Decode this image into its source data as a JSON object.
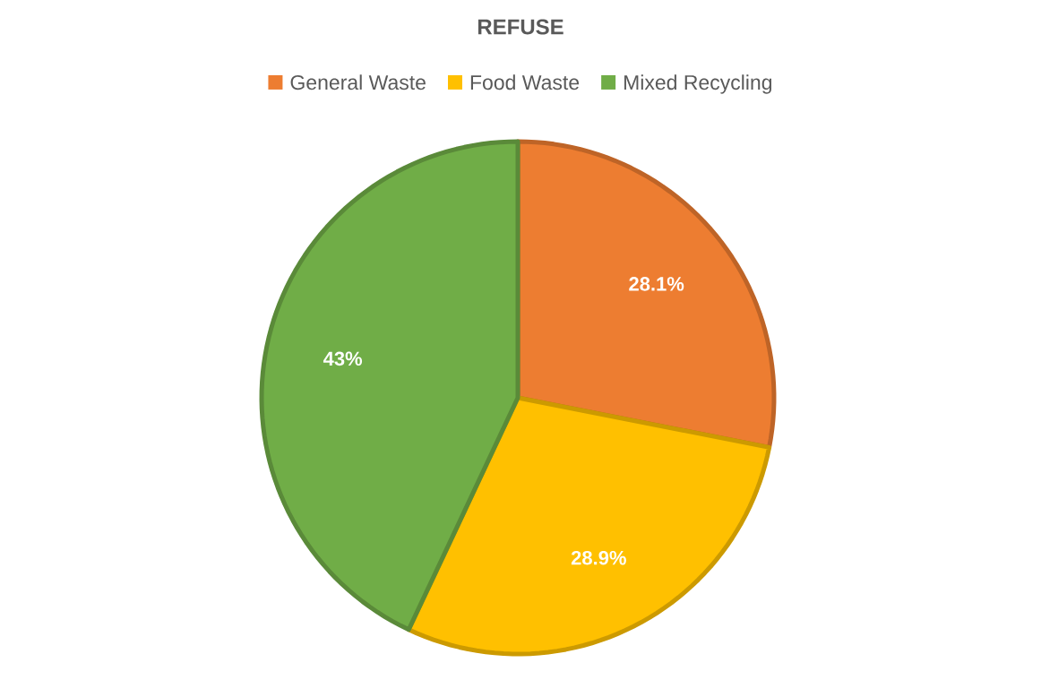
{
  "chart_data": {
    "type": "pie",
    "title": "REFUSE",
    "categories": [
      "General Waste",
      "Food Waste",
      "Mixed Recycling"
    ],
    "values": [
      28.1,
      28.9,
      43
    ],
    "value_labels": [
      "28.1%",
      "28.9%",
      "43%"
    ],
    "colors": [
      "#ed7d31",
      "#ffc000",
      "#70ad47"
    ],
    "legend": "top"
  }
}
